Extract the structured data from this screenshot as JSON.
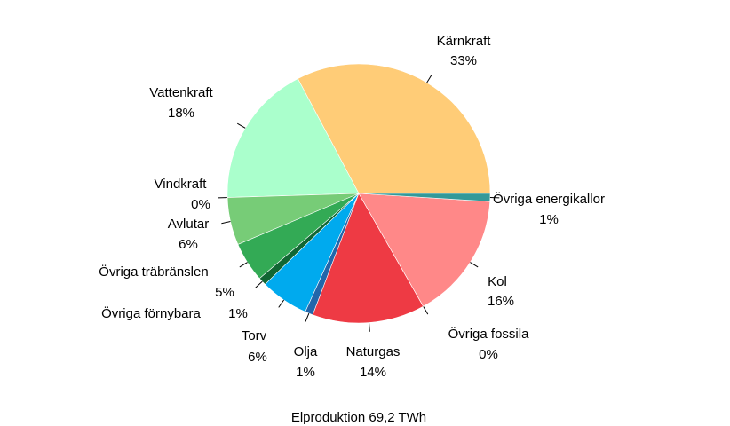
{
  "chart_data": {
    "type": "pie",
    "footer": "Elproduktion 69,2 TWh",
    "categories": [
      "Kärnkraft",
      "Vattenkraft",
      "Vindkraft",
      "Avlutar",
      "Övriga träbränslen",
      "Övriga förnybara",
      "Torv",
      "Olja",
      "Naturgas",
      "Övriga fossila",
      "Kol",
      "Övriga energikallor"
    ],
    "values": [
      33,
      18,
      0,
      6,
      5,
      1,
      6,
      1,
      14,
      0,
      16,
      1
    ],
    "value_labels": [
      "33%",
      "18%",
      "0%",
      "6%",
      "5%",
      "1%",
      "6%",
      "1%",
      "14%",
      "0%",
      "16%",
      "1%"
    ],
    "colors": [
      "#ffcc77",
      "#aaffcc",
      "#339999",
      "#77cc77",
      "#33aa55",
      "#116633",
      "#00aaee",
      "#2266aa",
      "#ee3a44",
      "#aa2222",
      "#ff8888",
      "#339999"
    ]
  }
}
